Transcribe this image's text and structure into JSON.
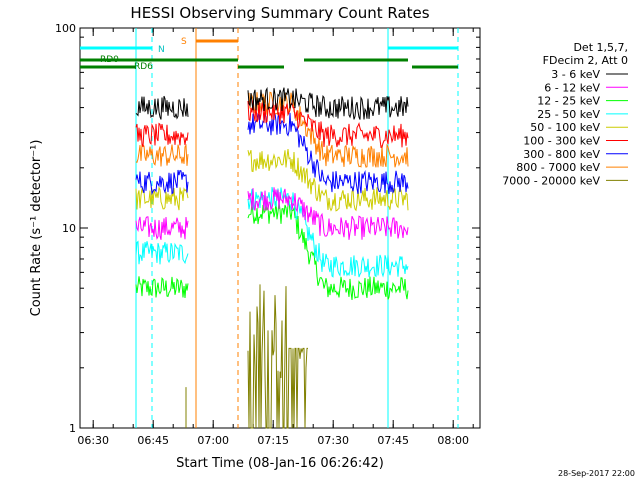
{
  "chart_data": {
    "type": "line",
    "title": "HESSI Observing Summary Count Rates",
    "xlabel": "Start Time (08-Jan-16 06:26:42)",
    "ylabel": "Count Rate (s⁻¹ detector⁻¹)",
    "yscale": "log",
    "ylim": [
      1,
      100
    ],
    "xlim_minutes_since_0626": [
      0,
      100
    ],
    "x_ticks": [
      "06:30",
      "06:45",
      "07:00",
      "07:15",
      "07:30",
      "07:45",
      "08:00"
    ],
    "y_ticks": [
      "1",
      "10",
      "100"
    ],
    "legend_header": [
      "Det 1,5,7,",
      "FDecim 2, Att 0"
    ],
    "legend_placement": "right",
    "footer": "28-Sep-2017 22:00",
    "series": [
      {
        "name": "3 - 6 keV",
        "color": "#000000",
        "seg1": 40,
        "seg2_start": 44,
        "seg2_end": 40
      },
      {
        "name": "6 - 12 keV",
        "color": "#ff00ff",
        "seg1": 10,
        "seg2_start": 14,
        "seg2_end": 10
      },
      {
        "name": "12 - 25 keV",
        "color": "#00ff00",
        "seg1": 5,
        "seg2_start": 12,
        "seg2_end": 5
      },
      {
        "name": "25 - 50 keV",
        "color": "#00ffff",
        "seg1": 7.5,
        "seg2_start": 14,
        "seg2_end": 6.5
      },
      {
        "name": "50 - 100 keV",
        "color": "#cccc00",
        "seg1": 14,
        "seg2_start": 22,
        "seg2_end": 14
      },
      {
        "name": "100 - 300 keV",
        "color": "#ff0000",
        "seg1": 29,
        "seg2_start": 38,
        "seg2_end": 29
      },
      {
        "name": "300 - 800 keV",
        "color": "#0000ff",
        "seg1": 17,
        "seg2_start": 33,
        "seg2_end": 17
      },
      {
        "name": "800 - 7000 keV",
        "color": "#ff8000",
        "seg1": 23,
        "seg2_start": 42,
        "seg2_end": 23
      },
      {
        "name": "7000 - 20000 keV",
        "color": "#808000",
        "seg1": null,
        "seg2_start": 3.5,
        "seg2_end": 1
      }
    ],
    "flag_labels": {
      "N": "N",
      "S": "S",
      "RD0": "RD0",
      "RD6": "RD6"
    }
  }
}
